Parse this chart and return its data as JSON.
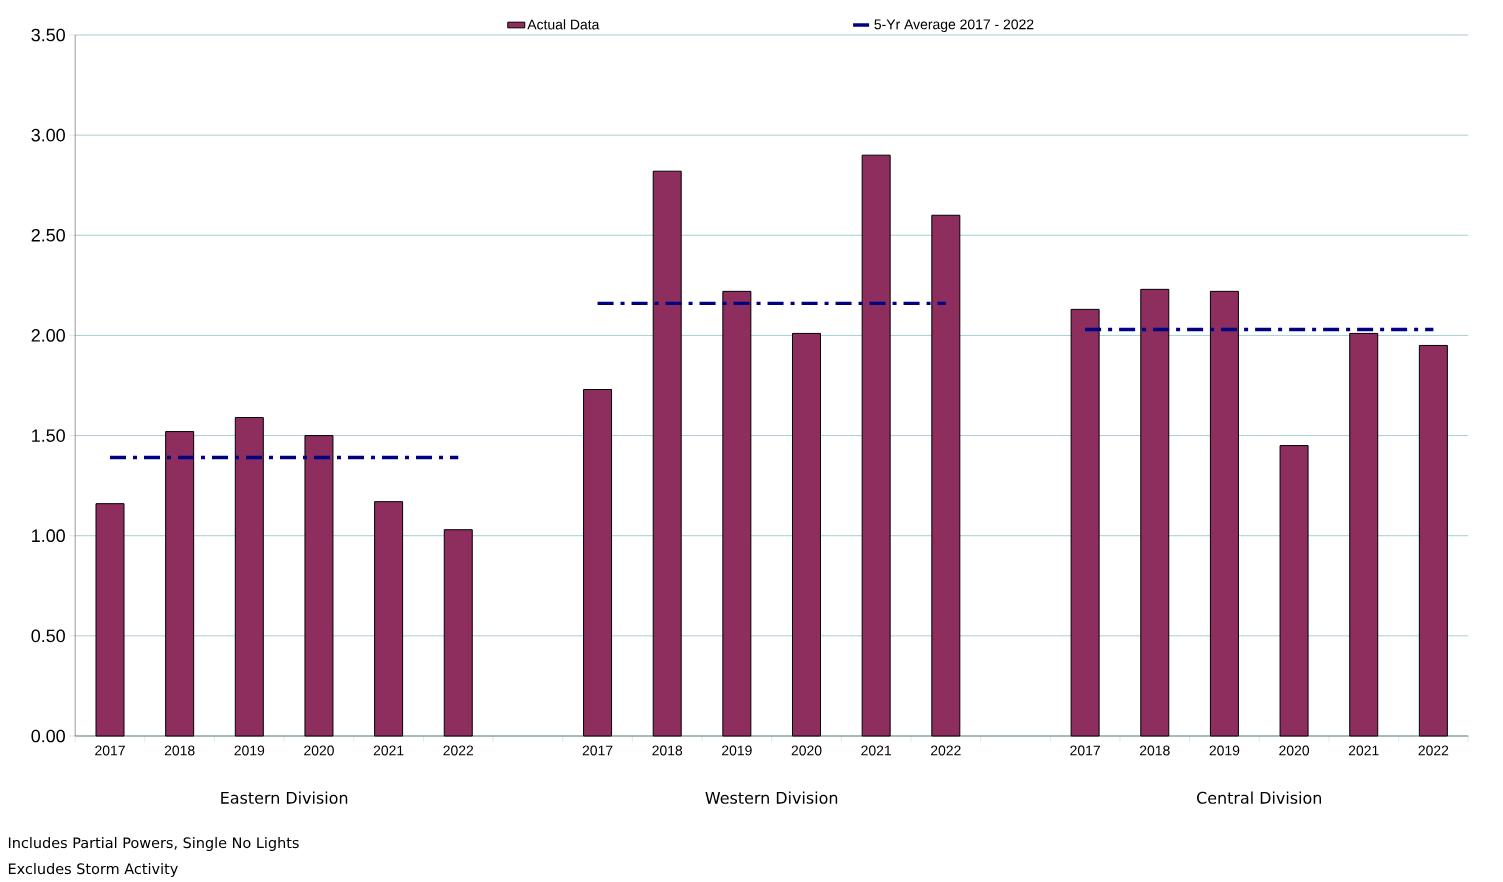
{
  "chart_data": {
    "type": "bar",
    "categories": [
      "2017",
      "2018",
      "2019",
      "2020",
      "2021",
      "2022",
      null,
      "2017",
      "2018",
      "2019",
      "2020",
      "2021",
      "2022",
      null,
      "2017",
      "2018",
      "2019",
      "2020",
      "2021",
      "2022"
    ],
    "series": [
      {
        "name": "Actual Data",
        "color": "#8e2e5e",
        "values": [
          1.16,
          1.52,
          1.59,
          1.5,
          1.17,
          1.03,
          null,
          1.73,
          2.82,
          2.22,
          2.01,
          2.9,
          2.6,
          null,
          2.13,
          2.23,
          2.22,
          1.45,
          2.01,
          1.95
        ]
      },
      {
        "name": "5-Yr Average 2017 - 2022",
        "type": "line",
        "color": "#000080",
        "line_style": "dashed",
        "marker": "none",
        "values": [
          1.39,
          1.39,
          1.39,
          1.39,
          1.39,
          1.39,
          null,
          2.16,
          2.16,
          2.16,
          2.16,
          2.16,
          2.16,
          null,
          2.03,
          2.03,
          2.03,
          2.03,
          2.03,
          2.03
        ]
      }
    ],
    "ylim": [
      0,
      3.5
    ],
    "yticks": [
      {
        "value": 0,
        "label": "0.00"
      },
      {
        "value": 0.5,
        "label": "0.50"
      },
      {
        "value": 1,
        "label": "1.00"
      },
      {
        "value": 1.5,
        "label": "1.50"
      },
      {
        "value": 2,
        "label": "2.00"
      },
      {
        "value": 2.5,
        "label": "2.50"
      },
      {
        "value": 3,
        "label": "3.00"
      },
      {
        "value": 3.5,
        "label": "3.50"
      }
    ],
    "grid": "y",
    "legend": "top",
    "annotations": [
      "Eastern Division",
      "Western Division",
      "Central Division",
      "Includes Partial Powers, Single No Lights",
      "Excludes Storm Activity"
    ]
  }
}
